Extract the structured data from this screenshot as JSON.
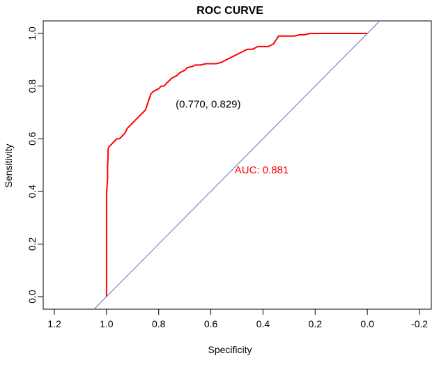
{
  "chart_data": {
    "type": "line",
    "title": "ROC CURVE",
    "xlabel": "Specificity",
    "ylabel": "Sensitivity",
    "x_axis_reversed": true,
    "xlim": [
      1.2,
      -0.2
    ],
    "ylim": [
      0.0,
      1.0
    ],
    "grid": false,
    "x_ticks": [
      1.2,
      1.0,
      0.8,
      0.6,
      0.4,
      0.2,
      0.0,
      -0.2
    ],
    "x_tick_labels": [
      "1.2",
      "1.0",
      "0.8",
      "0.6",
      "0.4",
      "0.2",
      "0.0",
      "-0.2"
    ],
    "y_ticks": [
      0.0,
      0.2,
      0.4,
      0.6,
      0.8,
      1.0
    ],
    "y_tick_labels": [
      "0.0",
      "0.2",
      "0.4",
      "0.6",
      "0.8",
      "1.0"
    ],
    "series": [
      {
        "color": "#ff0000",
        "x": [
          1.0,
          1.0,
          0.998,
          0.996,
          0.996,
          0.994,
          0.994,
          0.99,
          0.985,
          0.98,
          0.97,
          0.96,
          0.95,
          0.94,
          0.93,
          0.92,
          0.91,
          0.9,
          0.89,
          0.88,
          0.87,
          0.86,
          0.85,
          0.84,
          0.83,
          0.82,
          0.8,
          0.79,
          0.78,
          0.77,
          0.76,
          0.75,
          0.73,
          0.72,
          0.7,
          0.69,
          0.67,
          0.66,
          0.64,
          0.62,
          0.6,
          0.58,
          0.56,
          0.54,
          0.52,
          0.5,
          0.48,
          0.46,
          0.44,
          0.42,
          0.4,
          0.38,
          0.36,
          0.34,
          0.33,
          0.32,
          0.3,
          0.28,
          0.26,
          0.24,
          0.22,
          0.2,
          0.18,
          0.16,
          0.14,
          0.12,
          0.1,
          0.08,
          0.06,
          0.04,
          0.02,
          0.0
        ],
        "y": [
          0.0,
          0.39,
          0.42,
          0.45,
          0.5,
          0.53,
          0.56,
          0.57,
          0.575,
          0.58,
          0.59,
          0.6,
          0.6,
          0.61,
          0.62,
          0.64,
          0.65,
          0.66,
          0.67,
          0.68,
          0.69,
          0.7,
          0.71,
          0.74,
          0.77,
          0.78,
          0.79,
          0.8,
          0.8,
          0.81,
          0.82,
          0.83,
          0.84,
          0.85,
          0.86,
          0.87,
          0.875,
          0.88,
          0.88,
          0.885,
          0.885,
          0.885,
          0.89,
          0.9,
          0.91,
          0.92,
          0.93,
          0.94,
          0.94,
          0.95,
          0.95,
          0.95,
          0.96,
          0.99,
          0.99,
          0.99,
          0.99,
          0.99,
          0.995,
          0.995,
          1.0,
          1.0,
          1.0,
          1.0,
          1.0,
          1.0,
          1.0,
          1.0,
          1.0,
          1.0,
          1.0,
          1.0
        ]
      },
      {
        "color": "#6a6ad8",
        "x": [
          1.05,
          -0.05
        ],
        "y": [
          -0.05,
          1.05
        ]
      }
    ],
    "annotations": [
      {
        "text": "(0.770, 0.829)",
        "x": 0.61,
        "y": 0.73,
        "color": "#000000"
      },
      {
        "text": "AUC: 0.881",
        "x": 0.405,
        "y": 0.48,
        "color": "#ff0000"
      }
    ]
  }
}
